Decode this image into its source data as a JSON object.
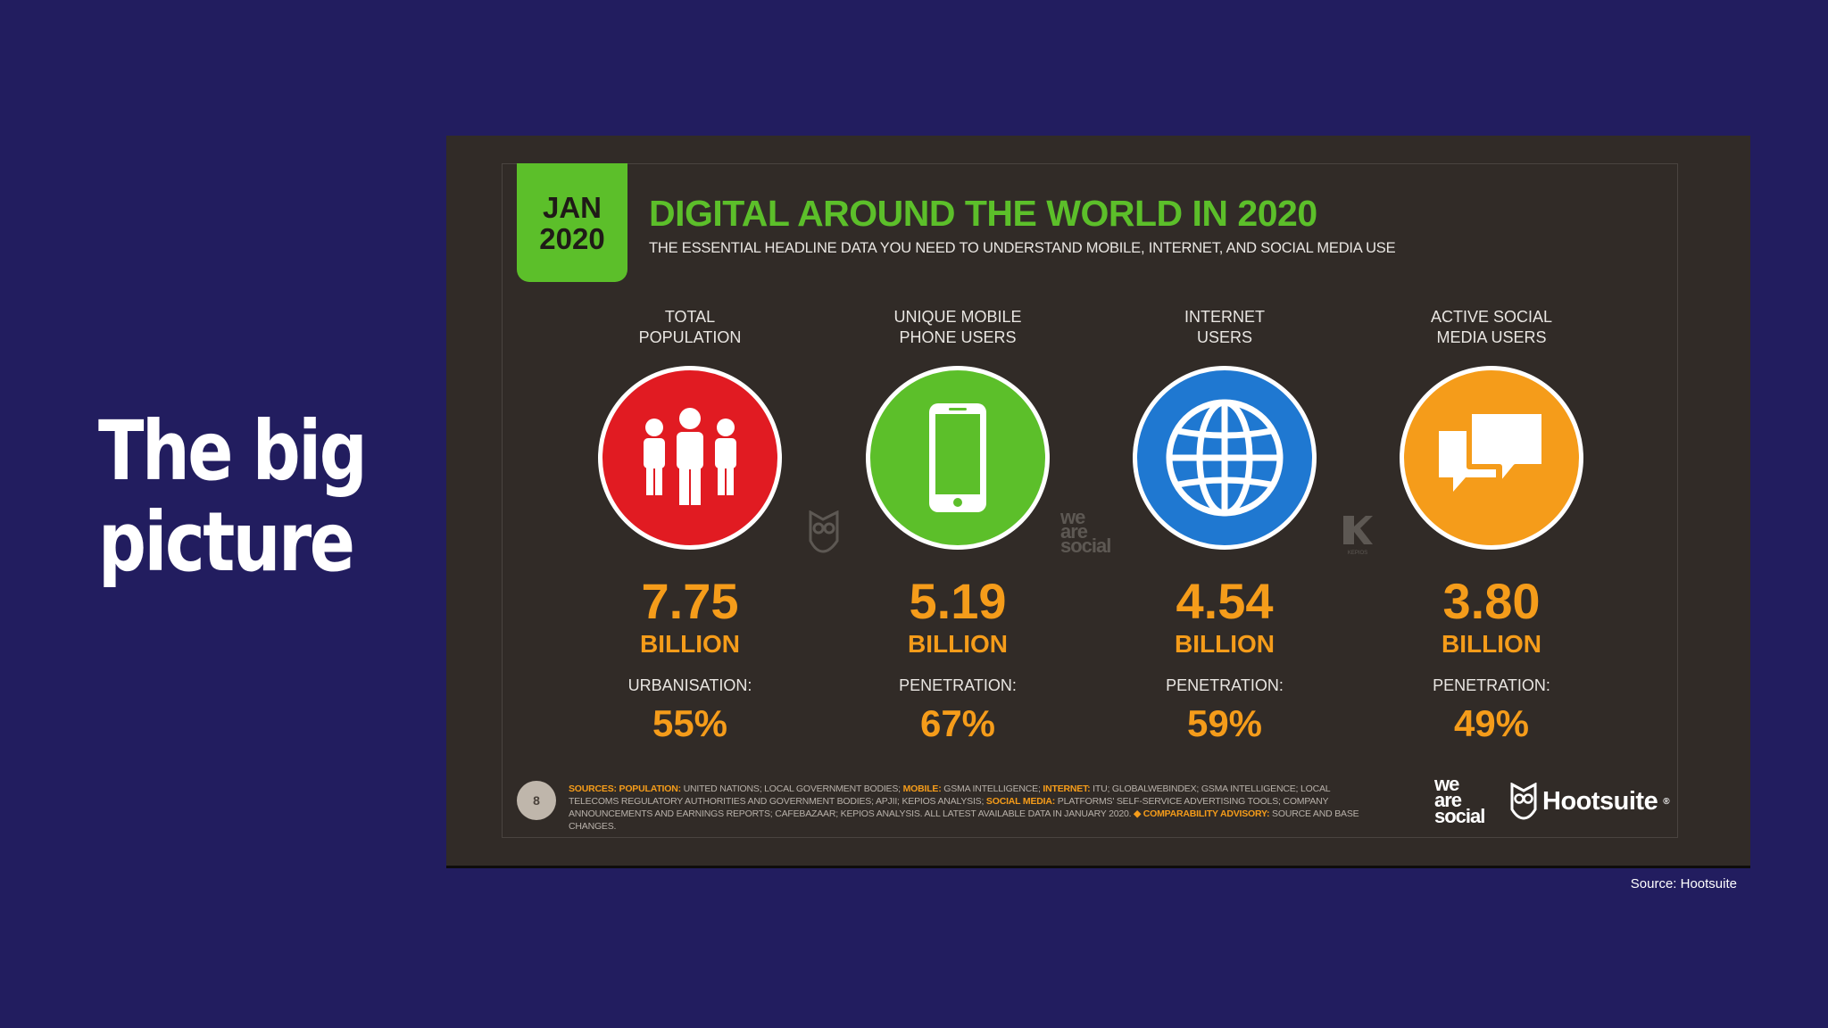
{
  "slide": {
    "title_lines": [
      "The big",
      "picture"
    ],
    "source_caption": "Source: Hootsuite",
    "background_color": "#221d5f"
  },
  "infographic": {
    "badge": {
      "month": "JAN",
      "year": "2020",
      "color": "#5cbf2a"
    },
    "title": "DIGITAL AROUND THE WORLD IN 2020",
    "subtitle": "THE ESSENTIAL HEADLINE DATA YOU NEED TO UNDERSTAND MOBILE, INTERNET, AND SOCIAL MEDIA USE",
    "stats": [
      {
        "label": [
          "TOTAL",
          "POPULATION"
        ],
        "icon": "people-icon",
        "color": "#e11b22",
        "value": "7.75",
        "unit": "BILLION",
        "sub_label": "URBANISATION:",
        "sub_value": "55%"
      },
      {
        "label": [
          "UNIQUE MOBILE",
          "PHONE USERS"
        ],
        "icon": "mobile-phone-icon",
        "color": "#5cbf2a",
        "value": "5.19",
        "unit": "BILLION",
        "sub_label": "PENETRATION:",
        "sub_value": "67%"
      },
      {
        "label": [
          "INTERNET",
          "USERS"
        ],
        "icon": "globe-icon",
        "color": "#1f78d1",
        "value": "4.54",
        "unit": "BILLION",
        "sub_label": "PENETRATION:",
        "sub_value": "59%"
      },
      {
        "label": [
          "ACTIVE SOCIAL",
          "MEDIA USERS"
        ],
        "icon": "chat-bubbles-icon",
        "color": "#f59c1a",
        "value": "3.80",
        "unit": "BILLION",
        "sub_label": "PENETRATION:",
        "sub_value": "49%"
      }
    ],
    "watermarks": {
      "we_are_social": [
        "we",
        "are",
        "social"
      ],
      "kepios": "KEPIOS"
    },
    "footer": {
      "page_number": "8",
      "sources_parts": [
        {
          "text": "SOURCES: POPULATION:",
          "highlight": true
        },
        {
          "text": " UNITED NATIONS; LOCAL GOVERNMENT BODIES; ",
          "highlight": false
        },
        {
          "text": "MOBILE:",
          "highlight": true
        },
        {
          "text": " GSMA INTELLIGENCE; ",
          "highlight": false
        },
        {
          "text": "INTERNET:",
          "highlight": true
        },
        {
          "text": " ITU; GLOBALWEBINDEX; GSMA INTELLIGENCE; LOCAL TELECOMS REGULATORY AUTHORITIES AND GOVERNMENT BODIES; APJII; KEPIOS ANALYSIS; ",
          "highlight": false
        },
        {
          "text": "SOCIAL MEDIA:",
          "highlight": true
        },
        {
          "text": " PLATFORMS' SELF-SERVICE ADVERTISING TOOLS; COMPANY ANNOUNCEMENTS AND EARNINGS REPORTS; CAFEBAZAAR; KEPIOS ANALYSIS. ALL LATEST AVAILABLE DATA IN JANUARY 2020. ",
          "highlight": false
        },
        {
          "text": "◆ COMPARABILITY ADVISORY:",
          "highlight": true
        },
        {
          "text": " SOURCE AND BASE CHANGES.",
          "highlight": false
        }
      ],
      "logo_we_are_social": [
        "we",
        "are",
        "social"
      ],
      "logo_hootsuite": "Hootsuite",
      "logo_hootsuite_mark": "®"
    },
    "accent_color": "#f59c1a"
  }
}
